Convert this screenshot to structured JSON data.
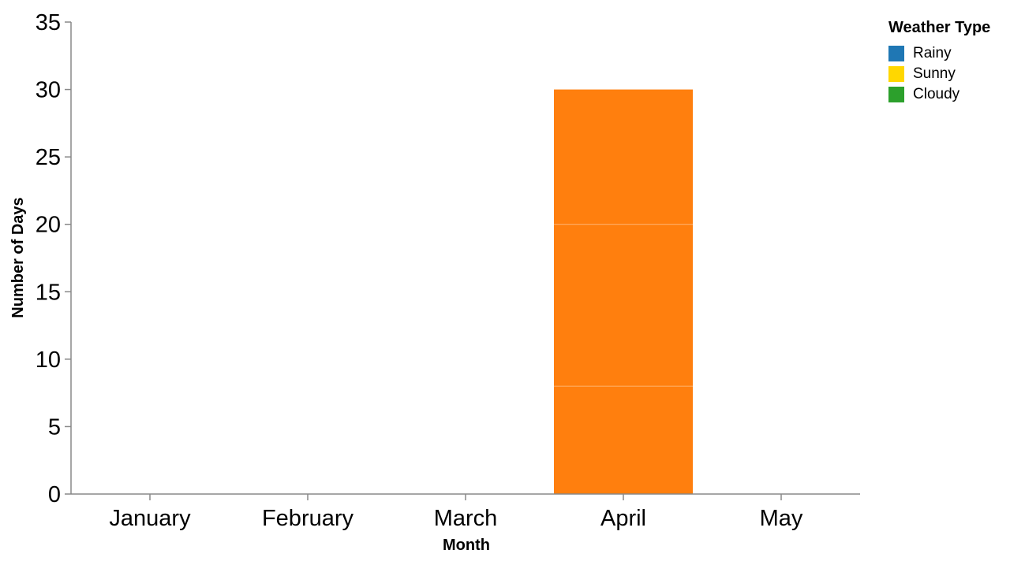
{
  "chart_data": {
    "type": "bar",
    "stacked": true,
    "xlabel": "Month",
    "ylabel": "Number of Days",
    "categories": [
      "January",
      "February",
      "March",
      "April",
      "May"
    ],
    "ylim": [
      0,
      35
    ],
    "yticks": [
      "0",
      "5",
      "10",
      "15",
      "20",
      "25",
      "30",
      "35"
    ],
    "bar_color": "#ff7f0e",
    "series": [
      {
        "name": "Rainy",
        "values": [
          0,
          0,
          0,
          8,
          0
        ]
      },
      {
        "name": "Sunny",
        "values": [
          0,
          0,
          0,
          12,
          0
        ]
      },
      {
        "name": "Cloudy",
        "values": [
          0,
          0,
          0,
          10,
          0
        ]
      }
    ],
    "legend": {
      "title": "Weather Type",
      "placement": "top-right",
      "items": [
        {
          "label": "Rainy",
          "color": "#1f77b4"
        },
        {
          "label": "Sunny",
          "color": "#ffd700"
        },
        {
          "label": "Cloudy",
          "color": "#2ca02c"
        }
      ]
    }
  }
}
